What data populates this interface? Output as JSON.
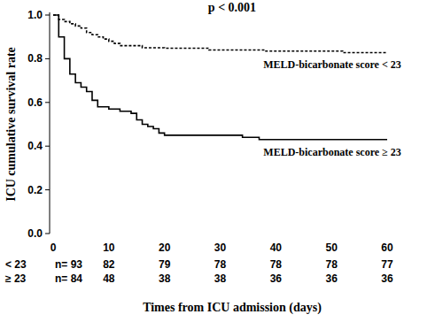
{
  "chart_data": {
    "type": "step",
    "title": "p < 0.001",
    "x_label": "Times from ICU admission (days)",
    "y_label": "ICU cumulative survival rate",
    "xlim": [
      0,
      60
    ],
    "ylim": [
      0,
      1
    ],
    "xticks": [
      0,
      10,
      20,
      30,
      40,
      50,
      60
    ],
    "yticks": [
      {
        "value": 0,
        "label": "0.0"
      },
      {
        "value": 0.2,
        "label": "0.2"
      },
      {
        "value": 0.4,
        "label": "0.4"
      },
      {
        "value": 0.6,
        "label": "0.6"
      },
      {
        "value": 0.8,
        "label": "0.8"
      },
      {
        "value": 1,
        "label": "1.0"
      }
    ],
    "grid": false,
    "series": [
      {
        "name": "MELD-bicarbonate score < 23",
        "color": "#000000",
        "line_style": "dashed",
        "x": [
          0,
          1,
          2,
          3,
          4,
          5,
          6,
          7,
          8,
          9,
          10,
          11,
          12,
          16,
          20,
          28,
          38,
          52,
          60
        ],
        "values": [
          1.0,
          0.98,
          0.97,
          0.96,
          0.95,
          0.94,
          0.92,
          0.91,
          0.9,
          0.89,
          0.88,
          0.87,
          0.86,
          0.85,
          0.848,
          0.84,
          0.835,
          0.828,
          0.828
        ]
      },
      {
        "name": "MELD-bicarbonate score ≥ 23",
        "color": "#000000",
        "line_style": "solid",
        "x": [
          0,
          1,
          2,
          3,
          4,
          5,
          6,
          7,
          8,
          10,
          12,
          14,
          15,
          16,
          17,
          18,
          19,
          20,
          34,
          37,
          60
        ],
        "values": [
          1.0,
          0.9,
          0.8,
          0.73,
          0.69,
          0.67,
          0.65,
          0.61,
          0.58,
          0.57,
          0.56,
          0.55,
          0.52,
          0.5,
          0.49,
          0.48,
          0.46,
          0.45,
          0.44,
          0.43,
          0.43
        ]
      }
    ],
    "at_risk": {
      "x": [
        0,
        10,
        20,
        30,
        40,
        50,
        60
      ],
      "rows": [
        {
          "label": "< 23",
          "values": [
            93,
            82,
            79,
            78,
            78,
            78,
            77
          ],
          "value_labels": [
            "n= 93",
            "82",
            "79",
            "78",
            "78",
            "78",
            "77"
          ]
        },
        {
          "label": "≥ 23",
          "values": [
            84,
            48,
            38,
            38,
            36,
            36,
            36
          ],
          "value_labels": [
            "n= 84",
            "48",
            "38",
            "38",
            "36",
            "36",
            "36"
          ]
        }
      ]
    }
  }
}
